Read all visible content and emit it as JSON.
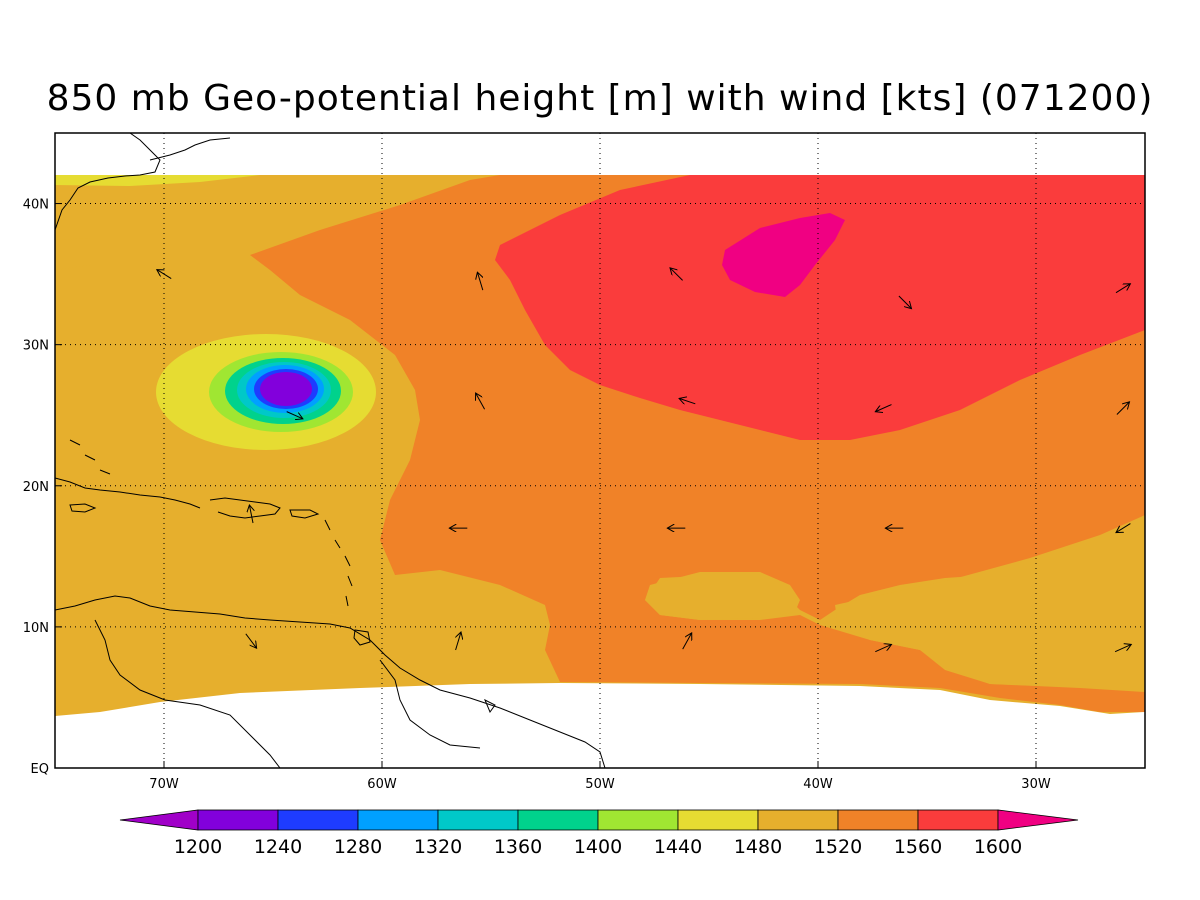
{
  "title": "850 mb Geo-potential height [m] with wind [kts] (071200)",
  "map": {
    "lon_range": [
      -75,
      -25
    ],
    "lat_range": [
      0,
      45
    ],
    "lon_ticks": [
      {
        "value": -70,
        "label": "70W"
      },
      {
        "value": -60,
        "label": "60W"
      },
      {
        "value": -50,
        "label": "50W"
      },
      {
        "value": -40,
        "label": "40W"
      },
      {
        "value": -30,
        "label": "30W"
      }
    ],
    "lat_ticks": [
      {
        "value": 0,
        "label": "EQ"
      },
      {
        "value": 10,
        "label": "10N"
      },
      {
        "value": 20,
        "label": "20N"
      },
      {
        "value": 30,
        "label": "30N"
      },
      {
        "value": 40,
        "label": "40N"
      }
    ],
    "grid": "dotted"
  },
  "colorbar": {
    "levels": [
      "1200",
      "1240",
      "1280",
      "1320",
      "1360",
      "1400",
      "1440",
      "1480",
      "1520",
      "1560",
      "1600"
    ],
    "colors": [
      "#a000c8",
      "#8200dc",
      "#1e3cff",
      "#00a0ff",
      "#00c8c8",
      "#00d28c",
      "#a0e632",
      "#e6dc32",
      "#e6af2d",
      "#f08228",
      "#fa3c3c",
      "#f00082"
    ]
  },
  "chart_data": {
    "type": "heatmap",
    "title": "850 mb Geo-potential height [m] with wind [kts] (071200)",
    "variable": "850 mb geopotential height [m]",
    "contour_levels": [
      1200,
      1240,
      1280,
      1320,
      1360,
      1400,
      1440,
      1480,
      1520,
      1560,
      1600
    ],
    "features": [
      {
        "kind": "low",
        "center_lon": -64.5,
        "center_lat": 27,
        "min_level": "below 1240"
      },
      {
        "kind": "high",
        "center_lon": -42,
        "center_lat": 36,
        "max_level": "above 1600"
      }
    ],
    "wind_vectors": [
      {
        "lon": -70,
        "lat": 35,
        "dx": -0.8,
        "dy": 0.5
      },
      {
        "lon": -55.5,
        "lat": 34.5,
        "dx": -0.3,
        "dy": 1
      },
      {
        "lon": -46.5,
        "lat": 35,
        "dx": -0.7,
        "dy": 0.7
      },
      {
        "lon": -36,
        "lat": 33,
        "dx": 0.7,
        "dy": -0.7
      },
      {
        "lon": -26,
        "lat": 34,
        "dx": 0.8,
        "dy": 0.5
      },
      {
        "lon": -64,
        "lat": 25,
        "dx": 0.9,
        "dy": -0.4
      },
      {
        "lon": -55.5,
        "lat": 26,
        "dx": -0.5,
        "dy": 0.9
      },
      {
        "lon": -46,
        "lat": 26,
        "dx": -0.9,
        "dy": 0.3
      },
      {
        "lon": -37,
        "lat": 25.5,
        "dx": -0.9,
        "dy": -0.4
      },
      {
        "lon": -26,
        "lat": 25.5,
        "dx": 0.7,
        "dy": 0.7
      },
      {
        "lon": -66,
        "lat": 18,
        "dx": -0.2,
        "dy": 1
      },
      {
        "lon": -56.5,
        "lat": 17,
        "dx": -1,
        "dy": 0
      },
      {
        "lon": -46.5,
        "lat": 17,
        "dx": -1,
        "dy": 0
      },
      {
        "lon": -36.5,
        "lat": 17,
        "dx": -1,
        "dy": 0
      },
      {
        "lon": -26,
        "lat": 17,
        "dx": -0.8,
        "dy": -0.5
      },
      {
        "lon": -66,
        "lat": 9,
        "dx": 0.6,
        "dy": -0.8
      },
      {
        "lon": -56.5,
        "lat": 9,
        "dx": 0.3,
        "dy": 1
      },
      {
        "lon": -46,
        "lat": 9,
        "dx": 0.5,
        "dy": 0.9
      },
      {
        "lon": -37,
        "lat": 8.5,
        "dx": 0.9,
        "dy": 0.4
      },
      {
        "lon": -26,
        "lat": 8.5,
        "dx": 0.9,
        "dy": 0.4
      }
    ]
  }
}
